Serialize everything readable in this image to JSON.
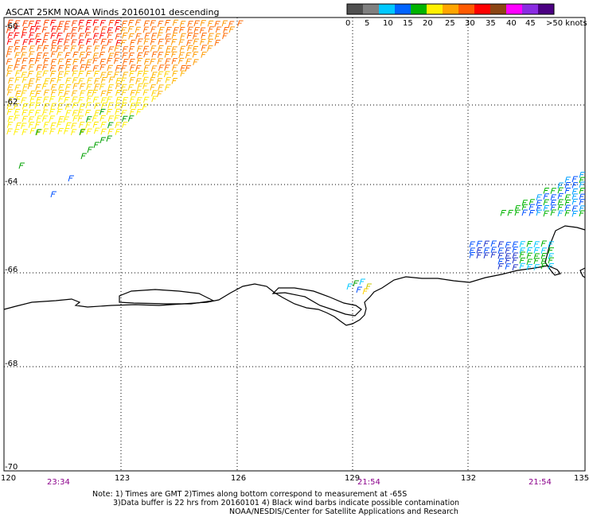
{
  "title": "ASCAT 25KM NOAA Winds 20160101 descending",
  "legend": {
    "labels": [
      "0",
      "5",
      "10",
      "15",
      "20",
      "25",
      "30",
      "35",
      "40",
      "45",
      ">50 knots"
    ],
    "colors": [
      "#505050",
      "#808080",
      "#00c8ff",
      "#0064ff",
      "#00b400",
      "#fff000",
      "#ffa500",
      "#ff5a00",
      "#ff0000",
      "#8b4513",
      "#ff00ff",
      "#8a2be2",
      "#4b0082"
    ]
  },
  "latitude_labels": [
    "-60",
    "-62",
    "-64",
    "-66",
    "-68",
    "-70"
  ],
  "longitude_labels": [
    "120",
    "123",
    "126",
    "129",
    "132",
    "135"
  ],
  "time_labels": [
    "23:34",
    "21:54",
    "21:54"
  ],
  "notes": [
    "Note: 1) Times are GMT 2)Times along bottom correspond to measurement at -65S",
    "3)Data buffer is 22 hrs from 20160101 4) Black wind barbs indicate possible contamination",
    "NOAA/NESDIS/Center for Satellite Applications and Research"
  ]
}
